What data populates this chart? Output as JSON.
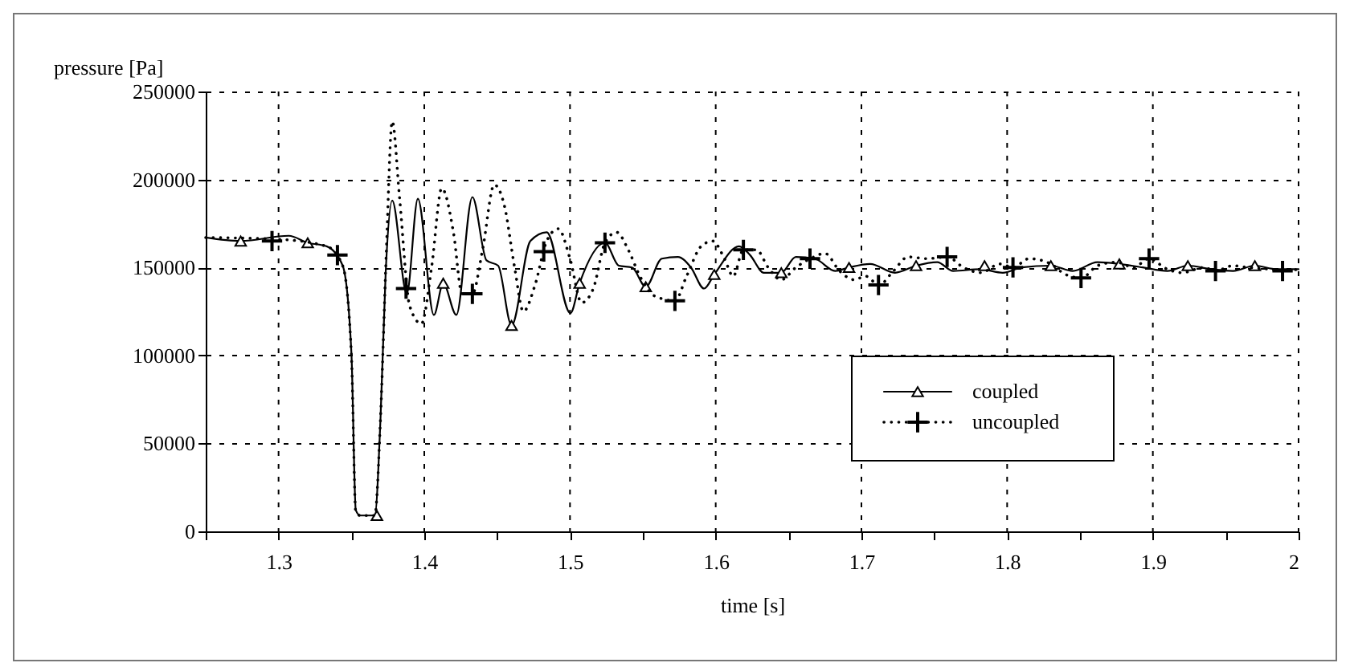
{
  "chart_data": {
    "type": "line",
    "xlabel": "time [s]",
    "ylabel": "pressure [Pa]",
    "xlim": [
      1.25,
      2
    ],
    "ylim": [
      0,
      250000
    ],
    "xticks": [
      {
        "value": 1.25,
        "label": null
      },
      1.3,
      {
        "value": 1.35,
        "label": null
      },
      1.4,
      {
        "value": 1.45,
        "label": null
      },
      1.5,
      {
        "value": 1.55,
        "label": null
      },
      1.6,
      {
        "value": 1.65,
        "label": null
      },
      1.7,
      {
        "value": 1.75,
        "label": null
      },
      1.8,
      {
        "value": 1.85,
        "label": null
      },
      1.9,
      {
        "value": 1.95,
        "label": null
      },
      2
    ],
    "yticks": [
      0,
      50000,
      100000,
      150000,
      200000,
      250000
    ],
    "grid": true,
    "legend": "bottom right",
    "series": [
      {
        "name": "coupled",
        "color": "#000000",
        "line_style": "solid",
        "x": [
          1.25,
          1.274,
          1.307,
          1.32,
          1.333,
          1.344,
          1.35,
          1.353,
          1.356,
          1.366,
          1.37,
          1.3735,
          1.378,
          1.388,
          1.3956,
          1.4066,
          1.413,
          1.422,
          1.433,
          1.4427,
          1.4507,
          1.4599,
          1.4728,
          1.484,
          1.5003,
          1.5066,
          1.524,
          1.5335,
          1.5426,
          1.552,
          1.563,
          1.574,
          1.583,
          1.592,
          1.599,
          1.616,
          1.6236,
          1.633,
          1.645,
          1.655,
          1.668,
          1.682,
          1.6915,
          1.706,
          1.723,
          1.7375,
          1.752,
          1.763,
          1.7816,
          1.797,
          1.81,
          1.83,
          1.845,
          1.862,
          1.877,
          1.893,
          1.91,
          1.924,
          1.94,
          1.955,
          1.97,
          1.985,
          2
        ],
        "values": [
          167000,
          165000,
          168000,
          164000,
          162000,
          151000,
          101000,
          12000,
          9000,
          9000,
          65000,
          147000,
          188000,
          135000,
          189000,
          123000,
          141000,
          123000,
          190000,
          154000,
          151000,
          117000,
          165000,
          170000,
          124000,
          141000,
          164000,
          151000,
          150000,
          139000,
          155000,
          156000,
          150000,
          138000,
          146000,
          162000,
          157000,
          147000,
          147000,
          156000,
          155000,
          148000,
          150000,
          152000,
          147000,
          151000,
          153000,
          148000,
          149000,
          147000,
          150000,
          151000,
          148000,
          153000,
          152000,
          150000,
          148000,
          151000,
          149000,
          148000,
          151000,
          149000,
          149000
        ]
      },
      {
        "type": "scatter",
        "color": "#000000",
        "marker": "triangle",
        "x": [
          1.274,
          1.32,
          1.3675,
          1.413,
          1.4599,
          1.5066,
          1.552,
          1.599,
          1.645,
          1.6915,
          1.7375,
          1.7845,
          1.83,
          1.877,
          1.924,
          1.97
        ],
        "values": [
          165000,
          164000,
          9000,
          141000,
          117000,
          141000,
          139000,
          146000,
          147000,
          150000,
          151000,
          151000,
          151000,
          152000,
          151000,
          151000
        ]
      },
      {
        "name": "uncoupled",
        "color": "#000000",
        "line_style": "dotted",
        "x": [
          1.25,
          1.3,
          1.333,
          1.344,
          1.35,
          1.353,
          1.356,
          1.366,
          1.37,
          1.374,
          1.378,
          1.383,
          1.39,
          1.398,
          1.405,
          1.412,
          1.42,
          1.426,
          1.433,
          1.44,
          1.448,
          1.455,
          1.462,
          1.468,
          1.476,
          1.484,
          1.492,
          1.5,
          1.508,
          1.516,
          1.524,
          1.532,
          1.54,
          1.548,
          1.556,
          1.564,
          1.572,
          1.58,
          1.59,
          1.598,
          1.606,
          1.612,
          1.619,
          1.628,
          1.636,
          1.645,
          1.655,
          1.665,
          1.675,
          1.685,
          1.695,
          1.703,
          1.712,
          1.722,
          1.732,
          1.745,
          1.759,
          1.77,
          1.782,
          1.795,
          1.804,
          1.815,
          1.83,
          1.84,
          1.851,
          1.862,
          1.875,
          1.887,
          1.897,
          1.91,
          1.92,
          1.935,
          1.943,
          1.955,
          1.965,
          1.98,
          1.989,
          2
        ],
        "values": [
          167000,
          166000,
          162000,
          151000,
          100000,
          11000,
          9000,
          9000,
          65000,
          160000,
          233000,
          190000,
          128000,
          118000,
          150000,
          195000,
          170000,
          135000,
          135000,
          160000,
          197000,
          185000,
          150000,
          125000,
          140000,
          165000,
          172000,
          155000,
          130000,
          138000,
          164000,
          170000,
          160000,
          145000,
          135000,
          132000,
          131000,
          145000,
          162000,
          165000,
          155000,
          145000,
          160000,
          160000,
          150000,
          143000,
          150000,
          155000,
          158000,
          148000,
          143000,
          145000,
          140000,
          148000,
          156000,
          155000,
          156000,
          150000,
          147000,
          152000,
          150000,
          155000,
          152000,
          146000,
          144000,
          151000,
          153000,
          150000,
          155000,
          149000,
          147000,
          150000,
          148000,
          151000,
          150000,
          149000,
          148000,
          149000
        ]
      },
      {
        "type": "scatter",
        "color": "#000000",
        "marker": "cross",
        "x": [
          1.2955,
          1.3404,
          1.3875,
          1.433,
          1.482,
          1.524,
          1.572,
          1.619,
          1.6647,
          1.7117,
          1.7588,
          1.804,
          1.8507,
          1.8974,
          1.943,
          1.989
        ],
        "values": [
          165000,
          157000,
          138000,
          135000,
          159000,
          164000,
          131000,
          160000,
          155000,
          140000,
          156000,
          150000,
          144000,
          155000,
          148000,
          148000
        ]
      }
    ]
  }
}
